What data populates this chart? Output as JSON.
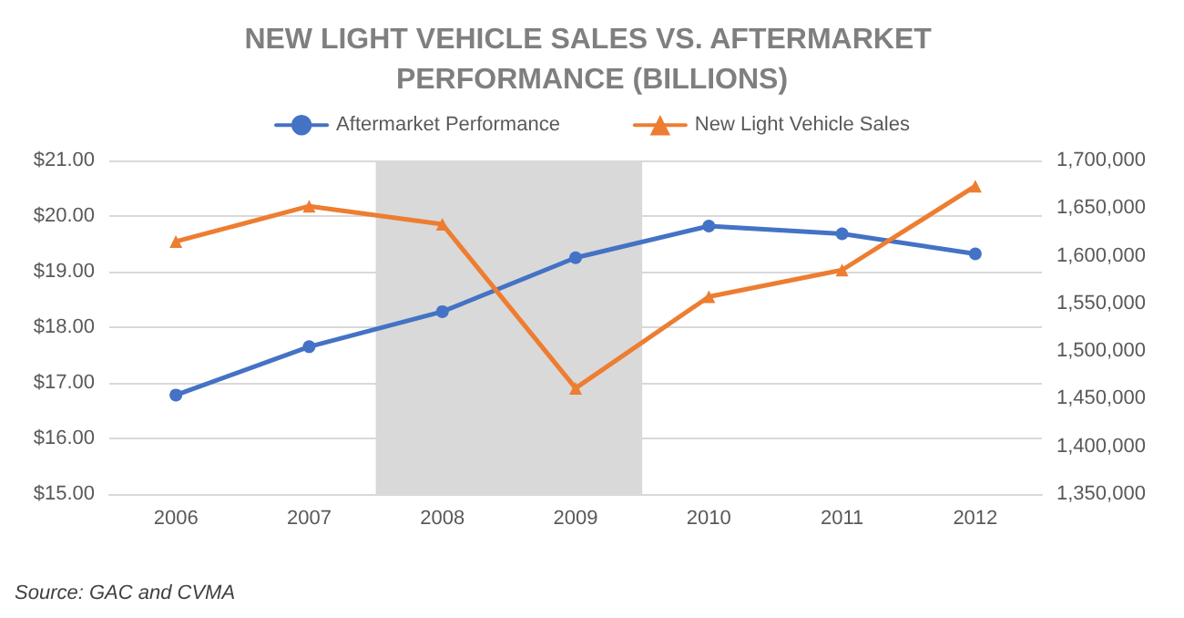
{
  "chart_data": {
    "type": "line",
    "title": "NEW LIGHT VEHICLE SALES VS. AFTERMARKET PERFORMANCE (BILLIONS)",
    "x": [
      2006,
      2007,
      2008,
      2009,
      2010,
      2011,
      2012
    ],
    "xlim": [
      2005.5,
      2012.5
    ],
    "xticks": [
      2006,
      2007,
      2008,
      2009,
      2010,
      2011,
      2012
    ],
    "series": [
      {
        "name": "Aftermarket Performance",
        "color": "#4472c4",
        "marker": "circle",
        "values": [
          16.78,
          17.65,
          18.28,
          19.25,
          19.82,
          19.68,
          19.32
        ]
      },
      {
        "name": "New Light Vehicle Sales",
        "color": "#ed7d31",
        "marker": "triangle",
        "axis": "y2",
        "values": [
          1615000,
          1652000,
          1633000,
          1461000,
          1557000,
          1585000,
          1673000
        ]
      }
    ],
    "ylim": [
      15,
      21
    ],
    "yticks": [
      {
        "value": 15,
        "label": "$15.00"
      },
      {
        "value": 16,
        "label": "$16.00"
      },
      {
        "value": 17,
        "label": "$17.00"
      },
      {
        "value": 18,
        "label": "$18.00"
      },
      {
        "value": 19,
        "label": "$19.00"
      },
      {
        "value": 20,
        "label": "$20.00"
      },
      {
        "value": 21,
        "label": "$21.00"
      }
    ],
    "y2lim": [
      1350000,
      1700000
    ],
    "y2ticks": [
      {
        "value": 1350000,
        "label": "1,350,000"
      },
      {
        "value": 1400000,
        "label": "1,400,000"
      },
      {
        "value": 1450000,
        "label": "1,450,000"
      },
      {
        "value": 1500000,
        "label": "1,500,000"
      },
      {
        "value": 1550000,
        "label": "1,550,000"
      },
      {
        "value": 1600000,
        "label": "1,600,000"
      },
      {
        "value": 1650000,
        "label": "1,650,000"
      },
      {
        "value": 1700000,
        "label": "1,700,000"
      }
    ],
    "bands": [
      {
        "axis": "x",
        "from": 2007.5,
        "to": 2009.5,
        "color": "#d9d9d9"
      }
    ],
    "grid": "y",
    "legend": "top",
    "annotations": [
      "Source: GAC and CVMA"
    ]
  }
}
